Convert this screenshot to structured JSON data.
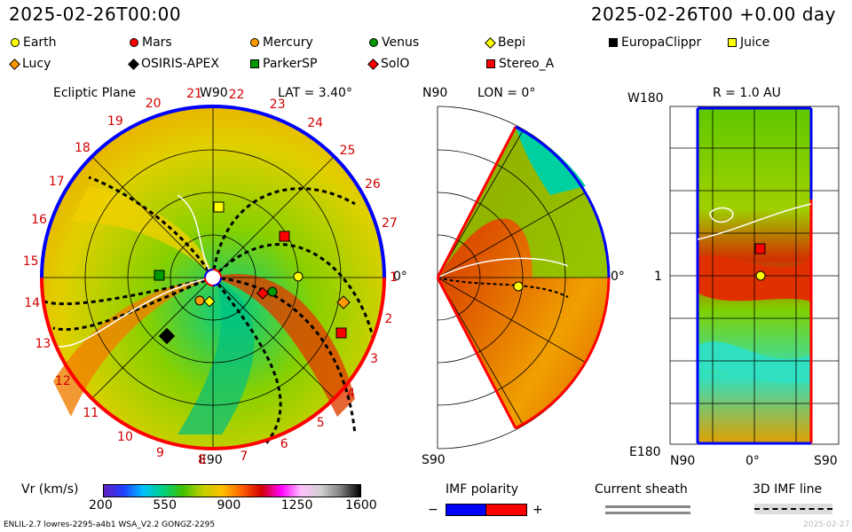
{
  "header": {
    "left_time": "2025-02-26T00:00",
    "right_time": "2025-02-26T00 +0.00 day"
  },
  "legend": [
    {
      "label": "Earth",
      "shape": "circle",
      "color": "#ffff00"
    },
    {
      "label": "Mars",
      "shape": "circle",
      "color": "#ff0000"
    },
    {
      "label": "Mercury",
      "shape": "circle",
      "color": "#ff9900"
    },
    {
      "label": "Venus",
      "shape": "circle",
      "color": "#009900"
    },
    {
      "label": "Bepi",
      "shape": "diamond",
      "color": "#ffff00"
    },
    {
      "label": "EuropaClippr",
      "shape": "square",
      "color": "#000000"
    },
    {
      "label": "Juice",
      "shape": "square",
      "color": "#ffff00"
    },
    {
      "label": "Lucy",
      "shape": "diamond",
      "color": "#ff9900"
    },
    {
      "label": "OSIRIS-APEX",
      "shape": "diamond",
      "color": "#000000"
    },
    {
      "label": "ParkerSP",
      "shape": "square",
      "color": "#009900"
    },
    {
      "label": "SolO",
      "shape": "diamond",
      "color": "#ff0000"
    },
    {
      "label": "Stereo_A",
      "shape": "square",
      "color": "#ff0000"
    }
  ],
  "ecliptic": {
    "title": "Ecliptic Plane",
    "lat": "LAT = 3.40°",
    "top_label": "W90",
    "bottom_label": "E90",
    "right_label": "0°",
    "cr_labels": [
      "1",
      "2",
      "3",
      "4",
      "5",
      "6",
      "7",
      "8",
      "9",
      "10",
      "11",
      "12",
      "13",
      "14",
      "15",
      "16",
      "17",
      "18",
      "19",
      "20",
      "21",
      "22",
      "23",
      "24",
      "25",
      "26",
      "27"
    ]
  },
  "meridional": {
    "lon": "LON = 0°",
    "top_label": "N90",
    "bottom_label": "S90",
    "right_label": "0°"
  },
  "radial": {
    "title": "R = 1.0 AU",
    "top_label": "W180",
    "bottom_label": "E180",
    "mid_label": "1",
    "x_left": "N90",
    "x_mid": "0°",
    "x_right": "S90"
  },
  "colorbar": {
    "label": "Vr (km/s)",
    "ticks": [
      "200",
      "550",
      "900",
      "1250",
      "1600"
    ]
  },
  "imf": {
    "title": "IMF polarity",
    "minus": "−",
    "plus": "+",
    "neg_color": "#0000ff",
    "pos_color": "#ff0000"
  },
  "sheath": {
    "title": "Current sheath"
  },
  "imf_line": {
    "title": "3D IMF line"
  },
  "footer": {
    "left": "ENLIL-2.7 lowres-2295-a4b1 WSA_V2.2 GONGZ-2295",
    "right": "2025-02-27"
  }
}
